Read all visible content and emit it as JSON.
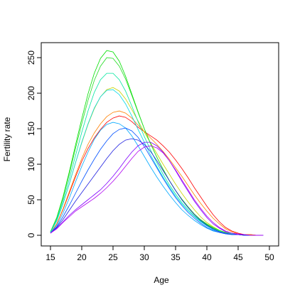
{
  "chart_data": {
    "type": "line",
    "title": "",
    "xlabel": "Age",
    "ylabel": "Fertility rate",
    "xlim": [
      15,
      50
    ],
    "ylim": [
      0,
      260
    ],
    "x_ticks": [
      15,
      20,
      25,
      30,
      35,
      40,
      45,
      50
    ],
    "y_ticks": [
      0,
      50,
      100,
      150,
      200,
      250
    ],
    "grid": false,
    "legend": "none",
    "color_scale": "rainbow",
    "x": [
      15,
      16,
      17,
      18,
      19,
      20,
      21,
      22,
      23,
      24,
      25,
      26,
      27,
      28,
      29,
      30,
      31,
      32,
      33,
      34,
      35,
      36,
      37,
      38,
      39,
      40,
      41,
      42,
      43,
      44,
      45,
      46,
      47,
      48,
      49
    ],
    "series": [
      {
        "color": "#FF0000",
        "values": [
          3,
          16,
          36,
          59,
          82,
          104,
          122,
          137,
          149,
          159,
          165,
          168,
          166,
          160,
          152,
          146,
          140,
          134,
          126,
          117,
          106,
          94,
          81,
          67,
          54,
          41,
          29,
          19,
          11,
          6,
          3,
          1,
          1,
          0,
          0
        ]
      },
      {
        "color": "#FF8000",
        "values": [
          3,
          16,
          37,
          61,
          85,
          108,
          128,
          144,
          157,
          167,
          173,
          175,
          172,
          165,
          155,
          146,
          137,
          128,
          118,
          107,
          95,
          83,
          70,
          57,
          45,
          34,
          24,
          16,
          9,
          5,
          2,
          1,
          1,
          0,
          0
        ]
      },
      {
        "color": "#C8D400",
        "values": [
          4,
          20,
          44,
          72,
          102,
          130,
          156,
          178,
          195,
          205,
          208,
          203,
          192,
          177,
          161,
          145,
          130,
          115,
          100,
          86,
          72,
          59,
          47,
          36,
          26,
          18,
          12,
          7,
          4,
          2,
          1,
          1,
          0,
          0,
          0
        ]
      },
      {
        "color": "#00E000",
        "values": [
          5,
          25,
          54,
          89,
          127,
          164,
          199,
          228,
          249,
          260,
          258,
          245,
          224,
          199,
          174,
          150,
          129,
          110,
          93,
          77,
          63,
          50,
          39,
          29,
          21,
          15,
          10,
          6,
          3,
          2,
          1,
          0,
          0,
          0,
          0
        ]
      },
      {
        "color": "#22DD22",
        "values": [
          5,
          24,
          52,
          86,
          122,
          157,
          190,
          218,
          238,
          250,
          249,
          238,
          220,
          197,
          173,
          150,
          129,
          110,
          93,
          77,
          63,
          51,
          40,
          30,
          22,
          16,
          11,
          7,
          4,
          2,
          1,
          0,
          0,
          0,
          0
        ]
      },
      {
        "color": "#00E6A0",
        "values": [
          4,
          22,
          48,
          79,
          112,
          145,
          175,
          201,
          219,
          228,
          228,
          219,
          203,
          182,
          160,
          139,
          120,
          102,
          86,
          71,
          58,
          46,
          36,
          27,
          20,
          14,
          9,
          6,
          3,
          2,
          1,
          0,
          0,
          0,
          0
        ]
      },
      {
        "color": "#00D8E8",
        "values": [
          4,
          20,
          44,
          72,
          102,
          131,
          157,
          179,
          195,
          204,
          205,
          198,
          185,
          168,
          149,
          131,
          113,
          97,
          82,
          68,
          55,
          44,
          34,
          26,
          19,
          13,
          8,
          5,
          3,
          2,
          1,
          0,
          0,
          0,
          0
        ]
      },
      {
        "color": "#00A8FF",
        "values": [
          3,
          14,
          31,
          52,
          75,
          97,
          117,
          135,
          148,
          156,
          159,
          157,
          151,
          140,
          126,
          111,
          96,
          82,
          69,
          57,
          46,
          36,
          28,
          21,
          15,
          10,
          6,
          4,
          2,
          1,
          1,
          0,
          0,
          0,
          0
        ]
      },
      {
        "color": "#0050FF",
        "values": [
          3,
          12,
          26,
          42,
          59,
          76,
          92,
          107,
          121,
          133,
          143,
          149,
          151,
          147,
          138,
          125,
          110,
          95,
          80,
          66,
          53,
          42,
          32,
          24,
          17,
          11,
          7,
          4,
          2,
          1,
          1,
          0,
          0,
          0,
          0
        ]
      },
      {
        "color": "#2020E0",
        "values": [
          3,
          11,
          22,
          35,
          48,
          60,
          72,
          84,
          96,
          108,
          119,
          128,
          134,
          136,
          134,
          128,
          118,
          105,
          91,
          77,
          63,
          50,
          39,
          29,
          21,
          14,
          9,
          5,
          3,
          1,
          1,
          0,
          0,
          0,
          0
        ]
      },
      {
        "color": "#8000FF",
        "values": [
          3,
          10,
          19,
          28,
          36,
          43,
          50,
          57,
          64,
          73,
          83,
          94,
          106,
          117,
          126,
          131,
          131,
          126,
          117,
          105,
          91,
          76,
          62,
          48,
          36,
          25,
          16,
          10,
          5,
          3,
          1,
          1,
          0,
          0,
          0
        ]
      },
      {
        "color": "#B000F0",
        "values": [
          3,
          9,
          18,
          26,
          34,
          40,
          46,
          52,
          59,
          67,
          76,
          86,
          97,
          108,
          118,
          124,
          126,
          123,
          116,
          105,
          92,
          78,
          64,
          50,
          38,
          27,
          18,
          11,
          6,
          3,
          2,
          1,
          0,
          0,
          0
        ]
      }
    ]
  }
}
